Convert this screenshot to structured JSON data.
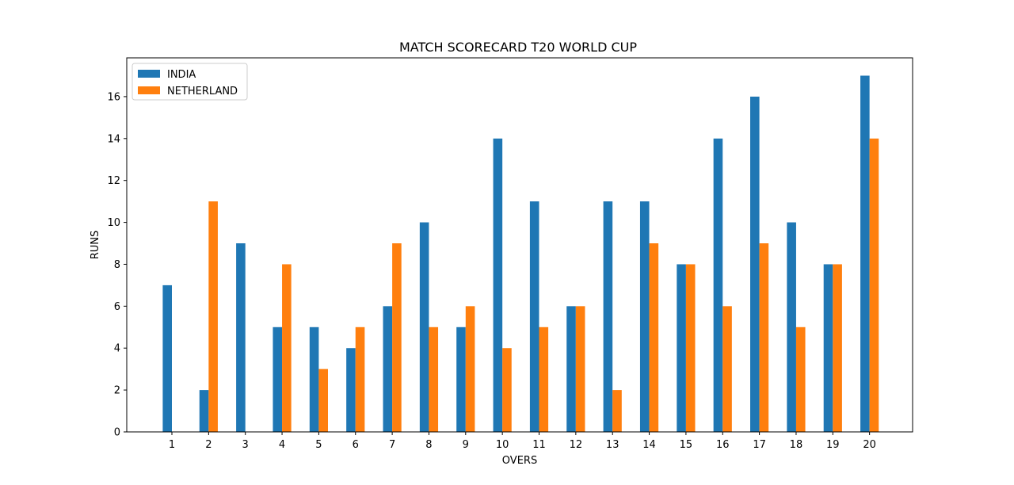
{
  "chart_data": {
    "type": "bar",
    "title": "MATCH SCORECARD T20 WORLD CUP",
    "xlabel": "OVERS",
    "ylabel": "RUNS",
    "categories": [
      "1",
      "2",
      "3",
      "4",
      "5",
      "6",
      "7",
      "8",
      "9",
      "10",
      "11",
      "12",
      "13",
      "14",
      "15",
      "16",
      "17",
      "18",
      "19",
      "20"
    ],
    "series": [
      {
        "name": "INDIA",
        "color": "#1f77b4",
        "values": [
          7,
          2,
          9,
          5,
          5,
          4,
          6,
          10,
          5,
          14,
          11,
          6,
          11,
          11,
          8,
          14,
          16,
          10,
          8,
          17
        ]
      },
      {
        "name": "NETHERLAND",
        "color": "#ff7f0e",
        "values": [
          0,
          11,
          0,
          8,
          3,
          5,
          9,
          5,
          6,
          4,
          5,
          6,
          2,
          9,
          8,
          6,
          9,
          5,
          8,
          14
        ]
      }
    ],
    "ylim": [
      0,
      17.85
    ],
    "yticks": [
      0,
      2,
      4,
      6,
      8,
      10,
      12,
      14,
      16
    ],
    "grid": false,
    "legend_position": "top-left"
  }
}
